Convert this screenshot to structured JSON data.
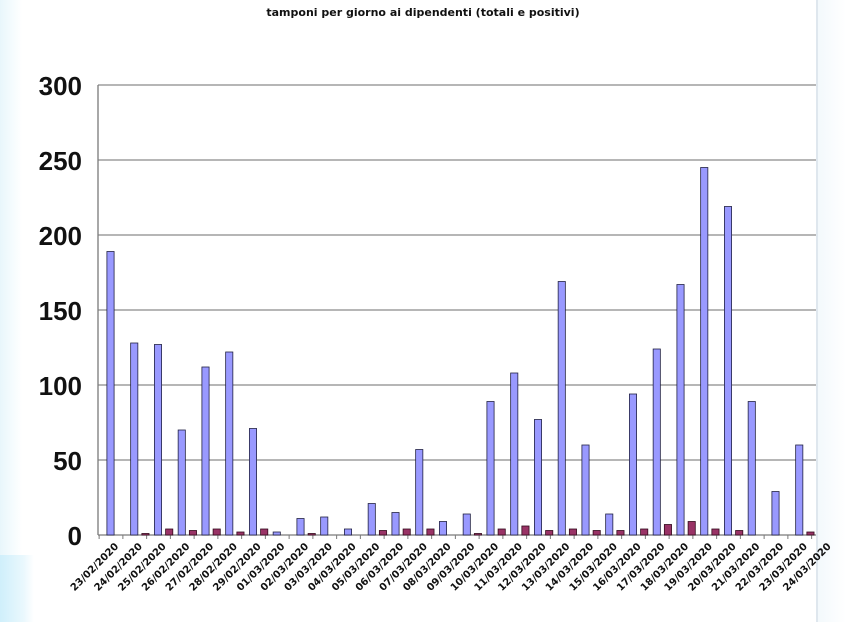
{
  "chart_data": {
    "type": "bar",
    "title": "tamponi per giorno ai dipendenti (totali e positivi)",
    "xlabel": "",
    "ylabel": "",
    "ylim": [
      0,
      300
    ],
    "y_ticks": [
      "0",
      "50",
      "100",
      "150",
      "200",
      "250",
      "300"
    ],
    "grid": true,
    "legend": "none",
    "categories": [
      "23/02/2020",
      "24/02/2020",
      "25/02/2020",
      "26/02/2020",
      "27/02/2020",
      "28/02/2020",
      "29/02/2020",
      "01/03/2020",
      "02/03/2020",
      "03/03/2020",
      "04/03/2020",
      "05/03/2020",
      "06/03/2020",
      "07/03/2020",
      "08/03/2020",
      "09/03/2020",
      "10/03/2020",
      "11/03/2020",
      "12/03/2020",
      "13/03/2020",
      "14/03/2020",
      "15/03/2020",
      "16/03/2020",
      "17/03/2020",
      "18/03/2020",
      "19/03/2020",
      "20/03/2020",
      "21/03/2020",
      "22/03/2020",
      "23/03/2020",
      "24/03/2020"
    ],
    "series": [
      {
        "color": "#9999ff",
        "values": [
          189,
          128,
          127,
          70,
          112,
          122,
          71,
          2,
          11,
          12,
          4,
          21,
          15,
          57,
          9,
          14,
          89,
          108,
          77,
          169,
          60,
          14,
          94,
          124,
          167,
          245,
          219,
          89,
          29,
          60,
          0
        ]
      },
      {
        "color": "#993366",
        "values": [
          0,
          1,
          4,
          3,
          4,
          2,
          4,
          0,
          1,
          0,
          0,
          3,
          4,
          4,
          0,
          1,
          4,
          6,
          3,
          4,
          3,
          3,
          4,
          7,
          9,
          4,
          3,
          0,
          0,
          2,
          0
        ]
      }
    ]
  }
}
